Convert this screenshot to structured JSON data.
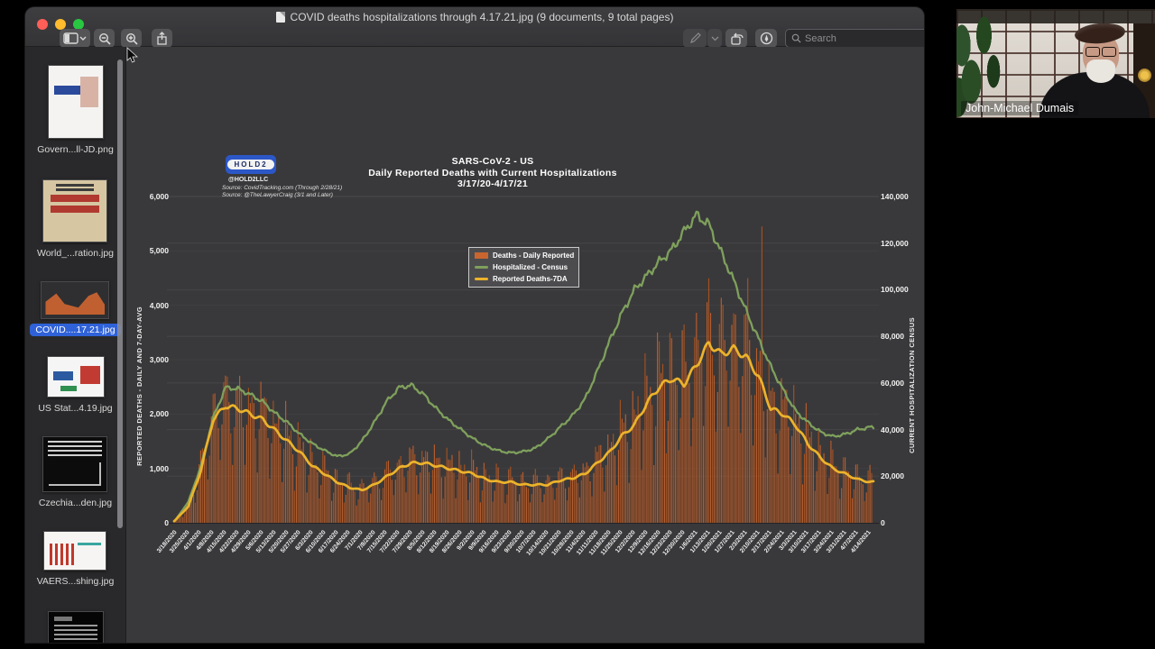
{
  "window": {
    "title": "COVID deaths hospitalizations through 4.17.21.jpg (9 documents, 9 total pages)",
    "toolbar": {
      "search_placeholder": "Search"
    }
  },
  "sidebar": {
    "items": [
      {
        "label": "Govern...ll-JD.png",
        "kind": "flyer",
        "selected": false,
        "mb": 26
      },
      {
        "label": "World_...ration.jpg",
        "kind": "poster",
        "selected": false,
        "mb": 24
      },
      {
        "label": "COVID....17.21.jpg",
        "kind": "chartdark",
        "selected": true,
        "mb": 22
      },
      {
        "label": "US Stat...4.19.jpg",
        "kind": "chartlight",
        "selected": false,
        "mb": 24
      },
      {
        "label": "Czechia...den.jpg",
        "kind": "chartdark2",
        "selected": false,
        "mb": 24
      },
      {
        "label": "VAERS...shing.jpg",
        "kind": "chartlight2",
        "selected": false,
        "mb": 26
      },
      {
        "label": "",
        "kind": "tweet",
        "selected": false,
        "mb": 0
      }
    ]
  },
  "webcam": {
    "name": "John-Michael Dumais"
  },
  "chart_data": {
    "type": "bar",
    "title": {
      "line1": "SARS-CoV-2 - US",
      "line2": "Daily Reported Deaths with Current Hospitalizations",
      "line3": "3/17/20-4/17/21"
    },
    "logo": {
      "text": "HOLD2",
      "handle": "@HOLD2LLC",
      "sources": {
        "s1": "Source: CovidTracking.com (Through 2/28/21)",
        "s2": "Source: @TheLawyerCraig (3/1 and Later)"
      }
    },
    "legend": [
      {
        "label": "Deaths - Daily Reported",
        "color": "#c9662f",
        "type": "bar"
      },
      {
        "label": "Hospitalized - Census",
        "color": "#7fa05c",
        "type": "line"
      },
      {
        "label": "Reported Deaths-7DA",
        "color": "#ecb32b",
        "type": "line"
      }
    ],
    "left_axis": {
      "label": "REPORTED DEATHS - DAILY AND 7-DAY-AVG",
      "max": 6000,
      "ticks": [
        {
          "v": 0,
          "label": "0"
        },
        {
          "v": 1000,
          "label": "1,000"
        },
        {
          "v": 2000,
          "label": "2,000"
        },
        {
          "v": 3000,
          "label": "3,000"
        },
        {
          "v": 4000,
          "label": "4,000"
        },
        {
          "v": 5000,
          "label": "5,000"
        },
        {
          "v": 6000,
          "label": "6,000"
        }
      ]
    },
    "right_axis": {
      "label": "CURRENT HOSPITALIZATION CENSUS",
      "max": 140000,
      "ticks": [
        {
          "v": 0,
          "label": "0"
        },
        {
          "v": 20000,
          "label": "20,000"
        },
        {
          "v": 40000,
          "label": "40,000"
        },
        {
          "v": 60000,
          "label": "60,000"
        },
        {
          "v": 80000,
          "label": "80,000"
        },
        {
          "v": 100000,
          "label": "100,000"
        },
        {
          "v": 120000,
          "label": "120,000"
        },
        {
          "v": 140000,
          "label": "140,000"
        }
      ]
    },
    "x_labels": [
      "3/18/2020",
      "3/25/2020",
      "4/1/2020",
      "4/8/2020",
      "4/15/2020",
      "4/22/2020",
      "4/29/2020",
      "5/6/2020",
      "5/13/2020",
      "5/20/2020",
      "5/27/2020",
      "6/3/2020",
      "6/10/2020",
      "6/17/2020",
      "6/24/2020",
      "7/1/2020",
      "7/8/2020",
      "7/15/2020",
      "7/22/2020",
      "7/29/2020",
      "8/5/2020",
      "8/12/2020",
      "8/19/2020",
      "8/26/2020",
      "9/2/2020",
      "9/9/2020",
      "9/16/2020",
      "9/23/2020",
      "9/30/2020",
      "10/7/2020",
      "10/14/2020",
      "10/21/2020",
      "10/28/2020",
      "11/4/2020",
      "11/11/2020",
      "11/18/2020",
      "11/25/2020",
      "12/2/2020",
      "12/9/2020",
      "12/16/2020",
      "12/23/2020",
      "12/30/2020",
      "1/6/2021",
      "1/13/2021",
      "1/20/2021",
      "1/27/2021",
      "2/3/2021",
      "2/10/2021",
      "2/17/2021",
      "2/24/2021",
      "3/3/2021",
      "3/10/2021",
      "3/17/2021",
      "3/24/2021",
      "3/31/2021",
      "4/7/2021",
      "4/14/2021"
    ],
    "series": [
      {
        "name": "Hospitalized - Census",
        "axis": "right",
        "values": [
          1500,
          9000,
          24000,
          45000,
          58000,
          57500,
          55000,
          52000,
          47000,
          43000,
          38000,
          34000,
          31000,
          28500,
          29500,
          35000,
          43000,
          52000,
          58000,
          59000,
          55000,
          49000,
          44000,
          40000,
          36000,
          33000,
          31000,
          30000,
          30500,
          32000,
          36000,
          41000,
          46000,
          53000,
          65000,
          78000,
          90000,
          100000,
          106000,
          112000,
          117000,
          125000,
          132000,
          128000,
          116000,
          104000,
          91000,
          79000,
          67000,
          57000,
          48000,
          43000,
          39000,
          37000,
          38000,
          40000,
          41000
        ]
      },
      {
        "name": "Reported Deaths-7DA",
        "axis": "left",
        "values": [
          60,
          300,
          950,
          1900,
          2150,
          2100,
          2000,
          1900,
          1700,
          1500,
          1300,
          1050,
          900,
          750,
          650,
          600,
          700,
          850,
          1000,
          1100,
          1100,
          1050,
          1000,
          950,
          900,
          800,
          750,
          750,
          700,
          700,
          700,
          780,
          820,
          900,
          1100,
          1300,
          1600,
          1800,
          2200,
          2500,
          2650,
          2550,
          2900,
          3300,
          3100,
          3200,
          3050,
          2700,
          2100,
          2000,
          1800,
          1450,
          1200,
          1000,
          900,
          800,
          750
        ]
      }
    ],
    "daily_bars": {
      "note": "Daily Reported Deaths bars derived from 7-day-average anchors with weekday reporting pattern",
      "weekday_factors": [
        0.5,
        0.8,
        1.3,
        1.25,
        1.15,
        1.1,
        0.9
      ],
      "start_weekday": 2,
      "spike_days": {
        "324": 4500,
        "332": 5450
      }
    },
    "layout": {
      "grid": true,
      "legend_position": "upper-middle-left"
    },
    "colors": {
      "background": "#39393b",
      "bars": "#bf5f2d",
      "bars_alt": "#a9521f",
      "hospitalized": "#7fa05c",
      "deaths7da": "#ecb32b",
      "accent_blue": "#2f62d8"
    }
  }
}
